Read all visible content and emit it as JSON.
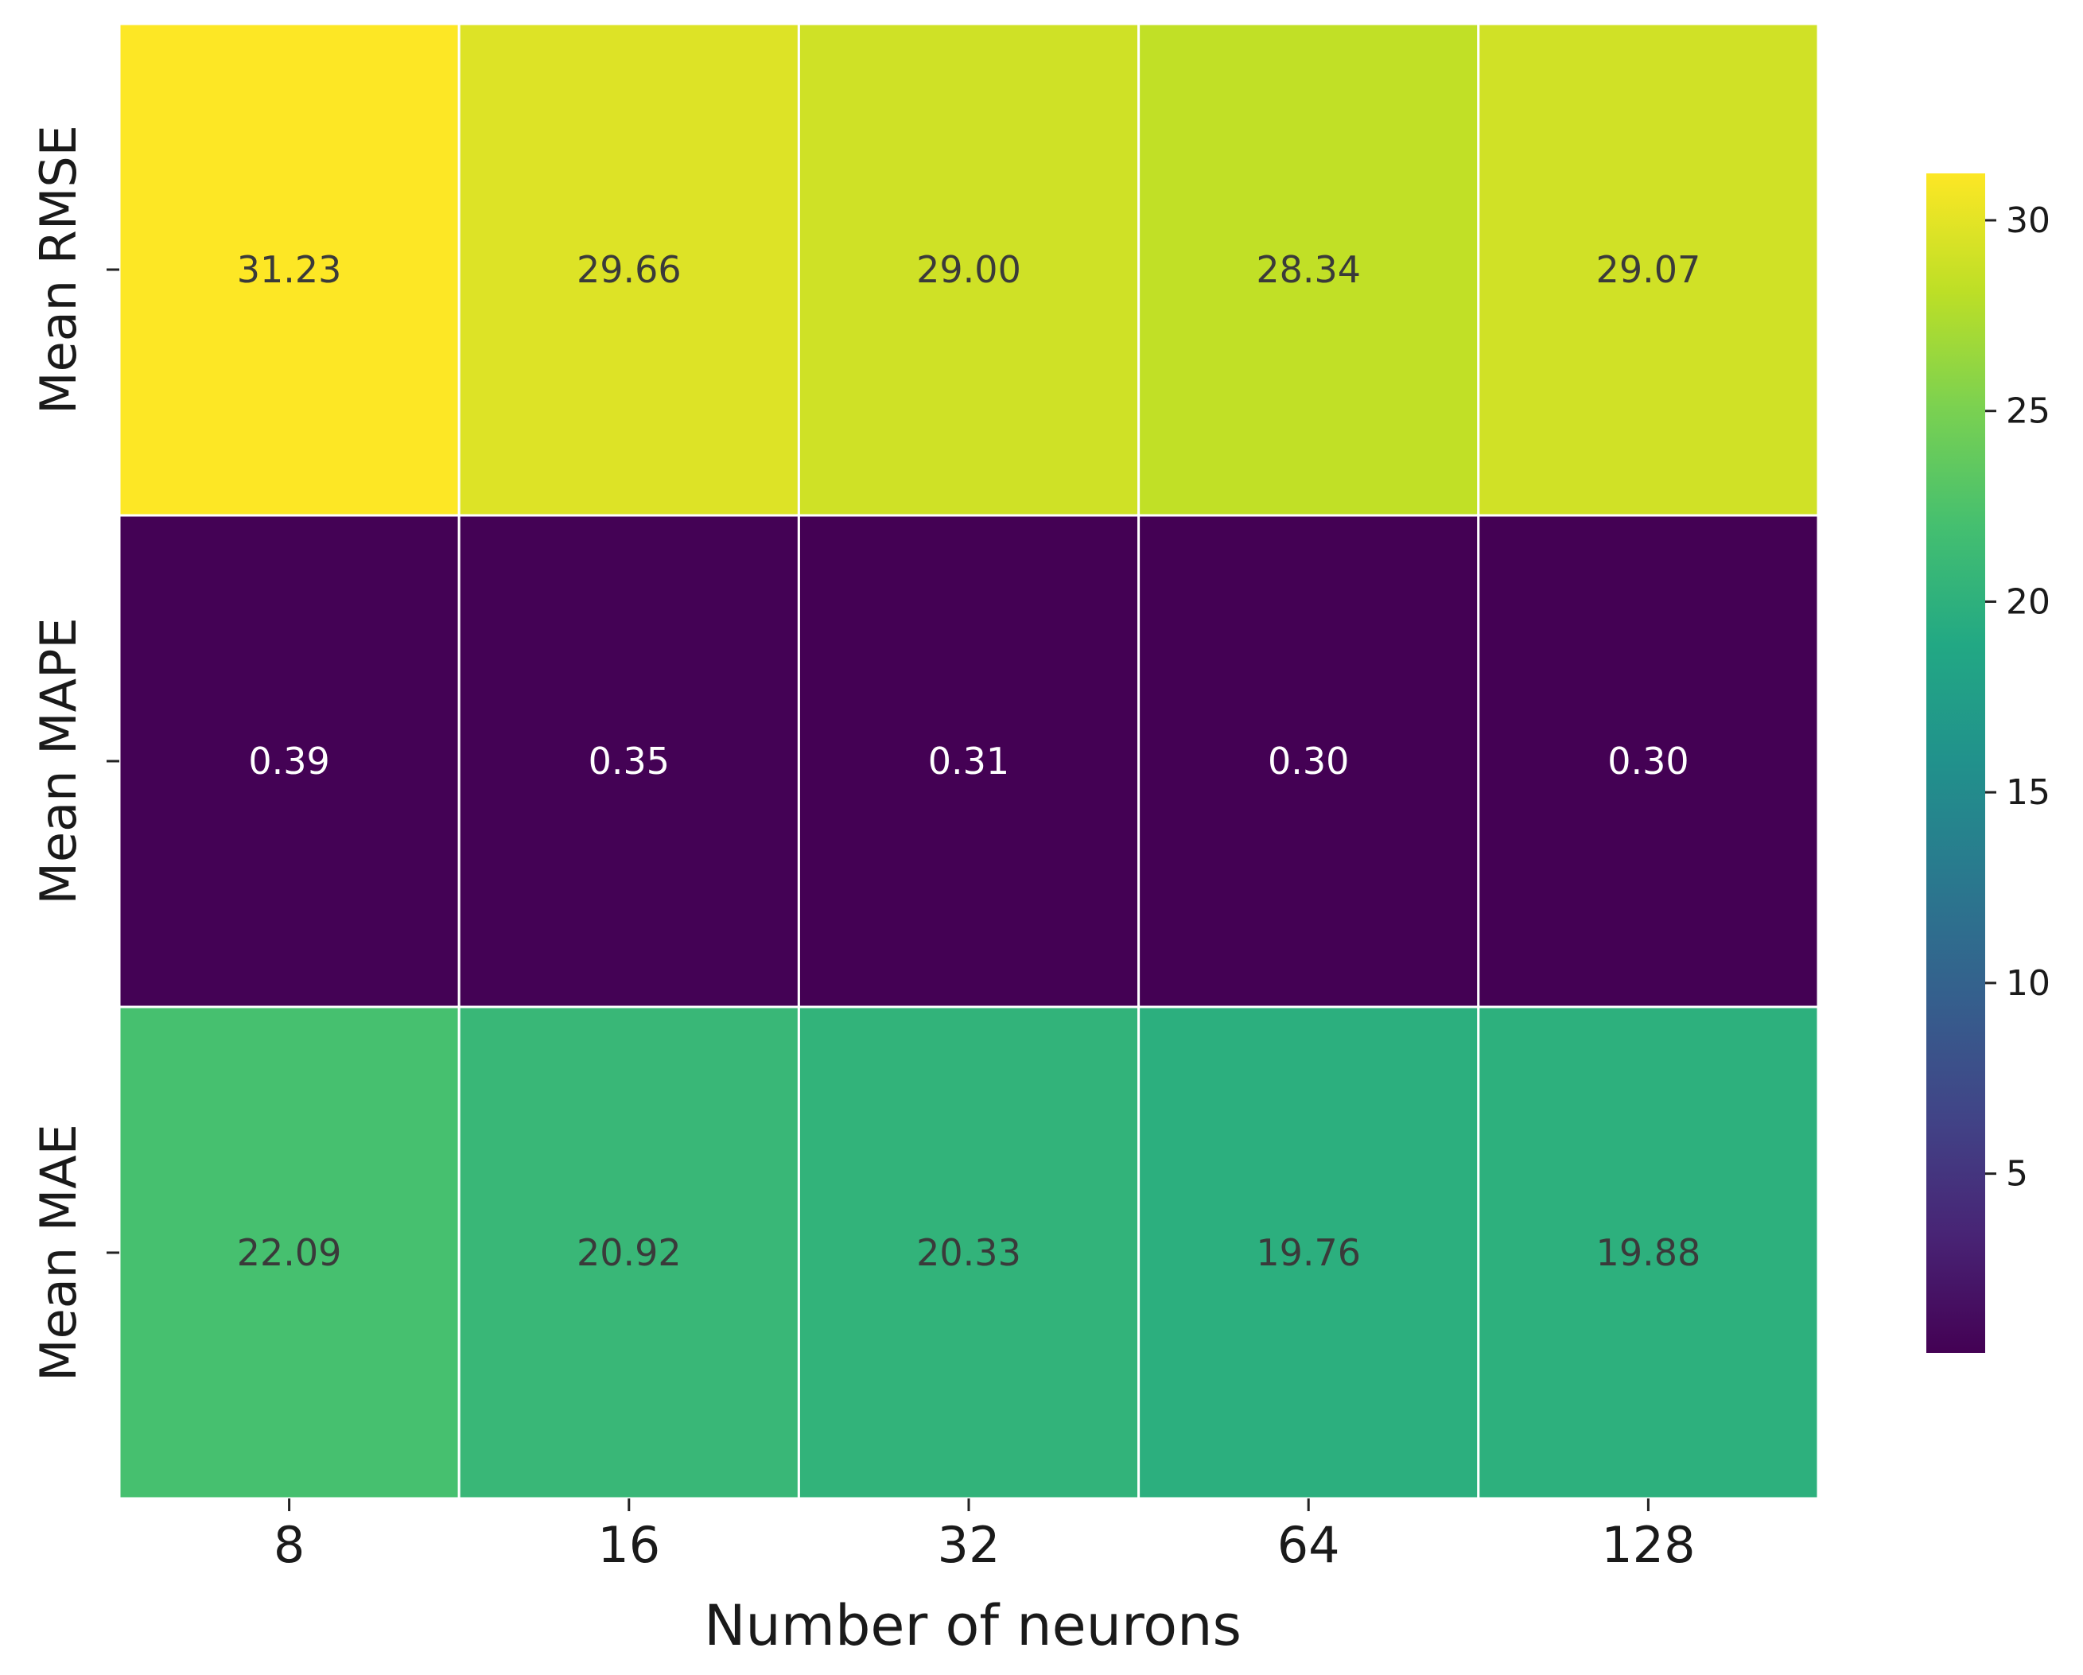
{
  "chart_data": {
    "type": "heatmap",
    "xlabel": "Number of neurons",
    "ylabel": "",
    "x_categories": [
      "8",
      "16",
      "32",
      "64",
      "128"
    ],
    "y_categories": [
      "Mean RMSE",
      "Mean MAPE",
      "Mean MAE"
    ],
    "values": [
      [
        31.23,
        29.66,
        29.0,
        28.34,
        29.07
      ],
      [
        0.39,
        0.35,
        0.31,
        0.3,
        0.3
      ],
      [
        22.09,
        20.92,
        20.33,
        19.76,
        19.88
      ]
    ],
    "value_labels": [
      [
        "31.23",
        "29.66",
        "29.00",
        "28.34",
        "29.07"
      ],
      [
        "0.39",
        "0.35",
        "0.31",
        "0.30",
        "0.30"
      ],
      [
        "22.09",
        "20.92",
        "20.33",
        "19.76",
        "19.88"
      ]
    ],
    "colormap": "viridis",
    "vmin": 0.3,
    "vmax": 31.23,
    "colorbar_ticks": [
      5,
      10,
      15,
      20,
      25,
      30
    ],
    "colorbar_tick_labels": [
      "5",
      "10",
      "15",
      "20",
      "25",
      "30"
    ],
    "grid": true,
    "grid_color": "#ffffff",
    "dark_label_color": "#3a3a3a",
    "light_label_color": "#ffffff"
  }
}
